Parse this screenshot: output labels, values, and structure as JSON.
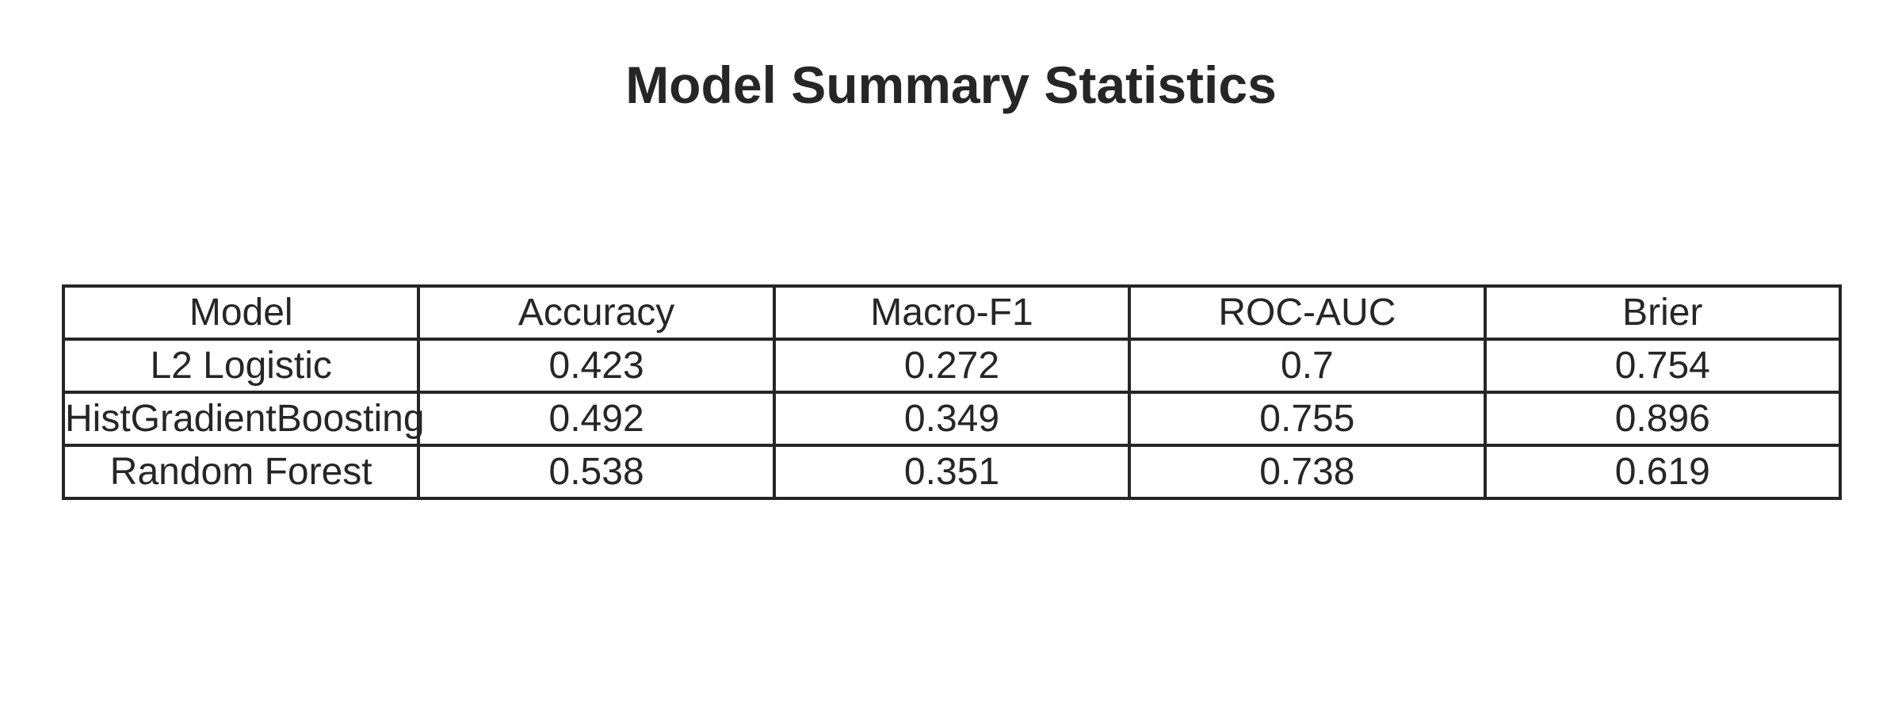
{
  "chart_data": {
    "type": "table",
    "title": "Model Summary Statistics",
    "columns": [
      "Model",
      "Accuracy",
      "Macro-F1",
      "ROC-AUC",
      "Brier"
    ],
    "rows": [
      [
        "L2 Logistic",
        "0.423",
        "0.272",
        "0.7",
        "0.754"
      ],
      [
        "HistGradientBoosting",
        "0.492",
        "0.349",
        "0.755",
        "0.896"
      ],
      [
        "Random Forest",
        "0.538",
        "0.351",
        "0.738",
        "0.619"
      ]
    ]
  },
  "colors": {
    "text": "#262626",
    "border": "#262626",
    "background": "#ffffff"
  }
}
